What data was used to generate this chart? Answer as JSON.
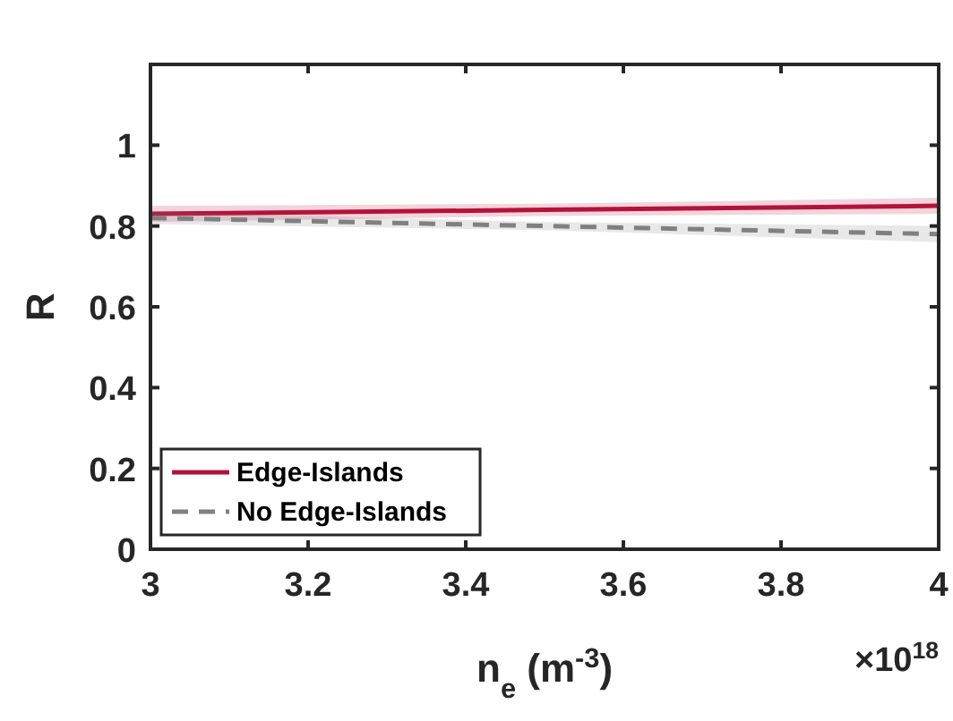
{
  "chart_data": {
    "type": "line",
    "xlabel": "n$_{e}$ (m$^{-3}$)",
    "ylabel": "R",
    "annotations": [
      "×10$^{18}$"
    ],
    "xlim": [
      3,
      4
    ],
    "xticks": [
      3,
      3.2,
      3.4,
      3.6,
      3.8,
      4
    ],
    "ylim": [
      0,
      1.2
    ],
    "yticks": [
      0,
      0.2,
      0.4,
      0.6,
      0.8,
      1
    ],
    "grid": false,
    "legend": "bottom left",
    "marker": "none",
    "series": [
      {
        "name": "Edge-Islands",
        "color": "#b5123a",
        "x": [
          3,
          3.5,
          4
        ],
        "values": [
          0.83,
          0.84,
          0.85
        ],
        "lower": [
          0.81,
          0.825,
          0.83
        ],
        "upper": [
          0.85,
          0.855,
          0.87
        ],
        "line_style": "solid"
      },
      {
        "name": "No Edge-Islands",
        "color": "#808080",
        "x": [
          3,
          3.5,
          4
        ],
        "values": [
          0.82,
          0.8,
          0.78
        ],
        "lower": [
          0.805,
          0.79,
          0.76
        ],
        "upper": [
          0.835,
          0.81,
          0.8
        ],
        "line_style": "dashed"
      }
    ]
  }
}
